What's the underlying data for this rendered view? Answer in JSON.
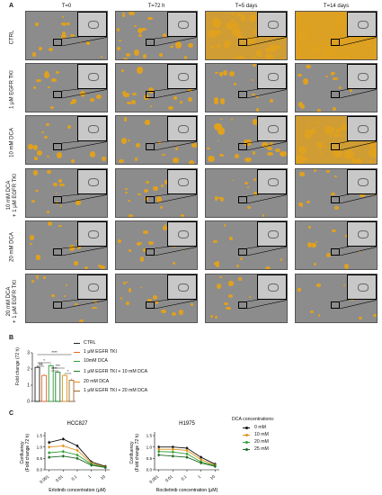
{
  "panel_a": {
    "letter": "A",
    "columns": [
      "T=0",
      "T=72 h",
      "T=5 days",
      "T=14 days"
    ],
    "rows": [
      "CTRL",
      "1 μM EGFR TKI",
      "10 mM DCA",
      "10 mM DCA\n+ 1 μM EGFR TKI",
      "20 mM DCA",
      "20 mM DCA\n+ 1 μM EGFR TKI"
    ]
  },
  "panel_b": {
    "letter": "B",
    "ylabel": "Fold change (72 h)",
    "legend": [
      "CTRL",
      "1 μM EGFR TKI",
      "10mM DCA",
      "1 μM EGFR TKI + 10 mM DCA",
      "20 mM DCA",
      "1 μM EGFR TKI + 20 mM DCA"
    ],
    "legend_colors": [
      "#222222",
      "#e8651e",
      "#2e9b3a",
      "#1e7c2a",
      "#e0901a",
      "#9a6a2a"
    ],
    "significance": [
      "****",
      "ns",
      "*",
      "****",
      "***",
      "*"
    ],
    "yticks": [
      "0",
      "1",
      "2",
      "3"
    ],
    "chart_data": {
      "type": "bar",
      "categories": [
        "CTRL",
        "1 μM EGFR TKI",
        "10mM DCA",
        "1 μM EGFR TKI + 10 mM DCA",
        "20 mM DCA",
        "1 μM EGFR TKI + 20 mM DCA"
      ],
      "values": [
        2.1,
        1.6,
        2.2,
        1.8,
        1.6,
        1.3
      ],
      "ylim": [
        0,
        3
      ]
    }
  },
  "panel_c": {
    "letter": "C",
    "legend_title": "DCA concentrations:",
    "legend": [
      "0 mM",
      "10 mM",
      "20 mM",
      "25 mM"
    ],
    "colors": [
      "#111111",
      "#e0901a",
      "#33a033",
      "#1e6a24"
    ],
    "charts": [
      {
        "title": "HCC827",
        "xlabel": "Erlotinib concentration (μM)",
        "ylabel": "Confluency\n(Fold change 72 h)",
        "xticks": [
          "0.001",
          "0.01",
          "0.1",
          "1",
          "10"
        ],
        "yticks": [
          "0.0",
          "0.5",
          "1.0",
          "1.5"
        ],
        "chart_data": {
          "type": "line",
          "x": [
            0.001,
            0.01,
            0.1,
            1,
            10
          ],
          "ylim": [
            0,
            1.5
          ],
          "series": [
            {
              "name": "0 mM",
              "values": [
                1.2,
                1.35,
                1.05,
                0.35,
                0.15
              ]
            },
            {
              "name": "10 mM",
              "values": [
                1.0,
                1.05,
                0.85,
                0.3,
                0.12
              ]
            },
            {
              "name": "20 mM",
              "values": [
                0.75,
                0.8,
                0.65,
                0.25,
                0.1
              ]
            },
            {
              "name": "25 mM",
              "values": [
                0.55,
                0.6,
                0.5,
                0.2,
                0.1
              ]
            }
          ]
        }
      },
      {
        "title": "H1975",
        "xlabel": "Rociletinib concentration (μM)",
        "ylabel": "Confluency\n(Fold change 72 h)",
        "xticks": [
          "0.001",
          "0.01",
          "0.1",
          "1",
          "10"
        ],
        "yticks": [
          "0.0",
          "0.5",
          "1.0",
          "1.5"
        ],
        "chart_data": {
          "type": "line",
          "x": [
            0.001,
            0.01,
            0.1,
            1,
            10
          ],
          "ylim": [
            0,
            1.5
          ],
          "series": [
            {
              "name": "0 mM",
              "values": [
                1.0,
                1.0,
                0.95,
                0.55,
                0.25
              ]
            },
            {
              "name": "10 mM",
              "values": [
                0.9,
                0.9,
                0.85,
                0.45,
                0.2
              ]
            },
            {
              "name": "20 mM",
              "values": [
                0.8,
                0.78,
                0.7,
                0.35,
                0.18
              ]
            },
            {
              "name": "25 mM",
              "values": [
                0.65,
                0.6,
                0.55,
                0.3,
                0.15
              ]
            }
          ]
        }
      }
    ]
  }
}
